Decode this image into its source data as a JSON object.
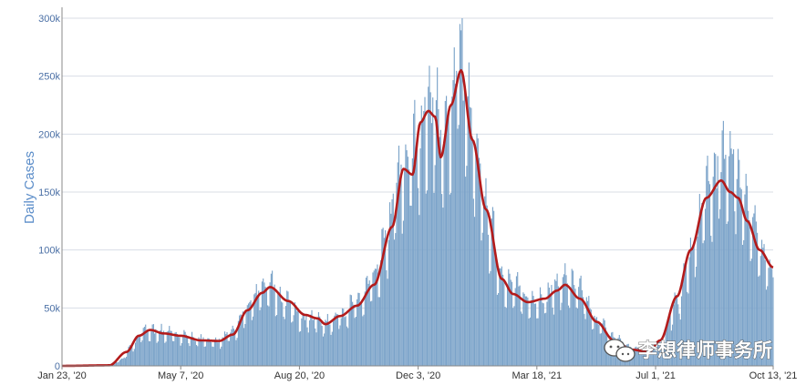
{
  "chart_data": {
    "type": "bar",
    "title": "",
    "ylabel": "Daily Cases",
    "xlabel": "",
    "ylim": [
      0,
      300000
    ],
    "grid": true,
    "y_ticks": [
      {
        "value": 0,
        "label": "0"
      },
      {
        "value": 50000,
        "label": "50k"
      },
      {
        "value": 100000,
        "label": "100k"
      },
      {
        "value": 150000,
        "label": "150k"
      },
      {
        "value": 200000,
        "label": "200k"
      },
      {
        "value": 250000,
        "label": "250k"
      },
      {
        "value": 300000,
        "label": "300k"
      }
    ],
    "x_range": [
      "2020-01-23",
      "2021-10-13"
    ],
    "x_ticks": [
      {
        "date": "2020-01-23",
        "label": "Jan 23, '20"
      },
      {
        "date": "2020-05-07",
        "label": "May 7, '20"
      },
      {
        "date": "2020-08-20",
        "label": "Aug 20, '20"
      },
      {
        "date": "2020-12-03",
        "label": "Dec 3, '20"
      },
      {
        "date": "2021-03-18",
        "label": "Mar 18, '21"
      },
      {
        "date": "2021-07-01",
        "label": "Jul 1, '21"
      },
      {
        "date": "2021-10-13",
        "label": "Oct 13, '21"
      }
    ],
    "series": [
      {
        "kind": "bar",
        "color": "#7ba3c9",
        "anchors": [
          [
            "2020-01-23",
            0
          ],
          [
            "2020-03-01",
            200
          ],
          [
            "2020-03-15",
            5000
          ],
          [
            "2020-03-25",
            18000
          ],
          [
            "2020-04-05",
            31000
          ],
          [
            "2020-04-20",
            30000
          ],
          [
            "2020-05-07",
            27000
          ],
          [
            "2020-05-25",
            23000
          ],
          [
            "2020-06-10",
            22000
          ],
          [
            "2020-06-22",
            30000
          ],
          [
            "2020-07-05",
            50000
          ],
          [
            "2020-07-18",
            68000
          ],
          [
            "2020-07-25",
            72000
          ],
          [
            "2020-08-05",
            58000
          ],
          [
            "2020-08-20",
            45000
          ],
          [
            "2020-09-01",
            42000
          ],
          [
            "2020-09-12",
            37000
          ],
          [
            "2020-09-25",
            45000
          ],
          [
            "2020-10-10",
            55000
          ],
          [
            "2020-10-25",
            75000
          ],
          [
            "2020-11-05",
            110000
          ],
          [
            "2020-11-15",
            160000
          ],
          [
            "2020-11-25",
            180000
          ],
          [
            "2020-12-03",
            200000
          ],
          [
            "2020-12-12",
            225000
          ],
          [
            "2020-12-18",
            230000
          ],
          [
            "2020-12-25",
            190000
          ],
          [
            "2021-01-02",
            230000
          ],
          [
            "2021-01-08",
            285000
          ],
          [
            "2021-01-15",
            230000
          ],
          [
            "2021-01-25",
            170000
          ],
          [
            "2021-02-05",
            120000
          ],
          [
            "2021-02-15",
            80000
          ],
          [
            "2021-02-25",
            70000
          ],
          [
            "2021-03-10",
            58000
          ],
          [
            "2021-03-25",
            60000
          ],
          [
            "2021-04-05",
            70000
          ],
          [
            "2021-04-12",
            75000
          ],
          [
            "2021-04-25",
            65000
          ],
          [
            "2021-05-10",
            40000
          ],
          [
            "2021-05-25",
            25000
          ],
          [
            "2021-06-10",
            16000
          ],
          [
            "2021-06-25",
            13000
          ],
          [
            "2021-07-05",
            20000
          ],
          [
            "2021-07-20",
            55000
          ],
          [
            "2021-08-01",
            95000
          ],
          [
            "2021-08-15",
            150000
          ],
          [
            "2021-08-28",
            175000
          ],
          [
            "2021-09-05",
            185000
          ],
          [
            "2021-09-15",
            160000
          ],
          [
            "2021-09-25",
            120000
          ],
          [
            "2021-10-05",
            100000
          ],
          [
            "2021-10-13",
            80000
          ]
        ]
      },
      {
        "kind": "line",
        "color": "#b31b1b",
        "anchors": [
          [
            "2020-01-23",
            0
          ],
          [
            "2020-03-05",
            500
          ],
          [
            "2020-03-20",
            12000
          ],
          [
            "2020-03-31",
            26000
          ],
          [
            "2020-04-10",
            31000
          ],
          [
            "2020-04-22",
            28000
          ],
          [
            "2020-05-07",
            26000
          ],
          [
            "2020-05-25",
            22000
          ],
          [
            "2020-06-10",
            21500
          ],
          [
            "2020-06-22",
            27000
          ],
          [
            "2020-07-05",
            48000
          ],
          [
            "2020-07-18",
            63000
          ],
          [
            "2020-07-25",
            68000
          ],
          [
            "2020-08-10",
            56000
          ],
          [
            "2020-08-25",
            44000
          ],
          [
            "2020-09-05",
            41000
          ],
          [
            "2020-09-12",
            36000
          ],
          [
            "2020-09-25",
            43000
          ],
          [
            "2020-10-10",
            52000
          ],
          [
            "2020-10-25",
            70000
          ],
          [
            "2020-11-10",
            120000
          ],
          [
            "2020-11-20",
            170000
          ],
          [
            "2020-11-28",
            165000
          ],
          [
            "2020-12-05",
            210000
          ],
          [
            "2020-12-12",
            220000
          ],
          [
            "2020-12-18",
            215000
          ],
          [
            "2020-12-23",
            180000
          ],
          [
            "2021-01-01",
            225000
          ],
          [
            "2021-01-10",
            255000
          ],
          [
            "2021-01-20",
            195000
          ],
          [
            "2021-02-01",
            135000
          ],
          [
            "2021-02-15",
            75000
          ],
          [
            "2021-02-25",
            62000
          ],
          [
            "2021-03-10",
            55000
          ],
          [
            "2021-03-25",
            58000
          ],
          [
            "2021-04-05",
            65000
          ],
          [
            "2021-04-12",
            70000
          ],
          [
            "2021-04-25",
            58000
          ],
          [
            "2021-05-10",
            38000
          ],
          [
            "2021-05-25",
            22000
          ],
          [
            "2021-06-10",
            14000
          ],
          [
            "2021-06-25",
            12000
          ],
          [
            "2021-07-05",
            22000
          ],
          [
            "2021-07-20",
            60000
          ],
          [
            "2021-08-01",
            100000
          ],
          [
            "2021-08-15",
            145000
          ],
          [
            "2021-08-28",
            160000
          ],
          [
            "2021-09-05",
            150000
          ],
          [
            "2021-09-12",
            145000
          ],
          [
            "2021-09-20",
            125000
          ],
          [
            "2021-10-01",
            100000
          ],
          [
            "2021-10-13",
            85000
          ]
        ]
      }
    ]
  },
  "watermark": {
    "text": "李想律师事务所",
    "icon": "wechat-icon"
  }
}
